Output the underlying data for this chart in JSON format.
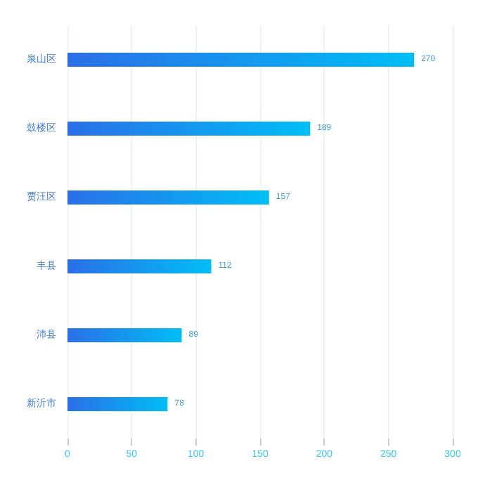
{
  "chart_data": {
    "type": "bar",
    "orientation": "horizontal",
    "categories": [
      "泉山区",
      "鼓楼区",
      "贾汪区",
      "丰县",
      "沛县",
      "新沂市"
    ],
    "values": [
      270,
      189,
      157,
      112,
      89,
      78
    ],
    "color": "#00bef5",
    "data_labels": true,
    "xlim": [
      0,
      300
    ],
    "xticks": [
      0,
      50,
      100,
      150,
      200,
      250,
      300
    ],
    "grid": "x"
  }
}
